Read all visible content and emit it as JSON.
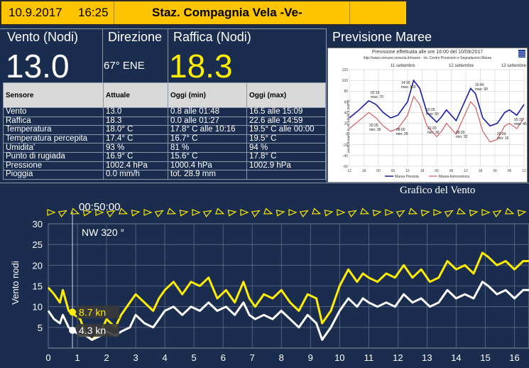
{
  "header": {
    "date": "10.9.2017",
    "time": "16:25",
    "station": "Staz. Compagnia Vela -Ve-"
  },
  "columns": {
    "vento": "Vento (Nodi)",
    "direzione": "Direzione",
    "raffica": "Raffica (Nodi)",
    "previsione": "Previsione Maree"
  },
  "current": {
    "vento": "13.0",
    "direzione": "67° ENE",
    "raffica": "18.3"
  },
  "table": {
    "headers": [
      "Sensore",
      "Attuale",
      "Oggi (min)",
      "Oggi (max)"
    ],
    "rows": [
      [
        "Vento",
        "13.0",
        "0.8 alle   01:48",
        "16.5 alle   15:09"
      ],
      [
        "Raffica",
        "18.3",
        "0.0 alle   01:27",
        "22.6 alle   14:59"
      ],
      [
        "Temperatura",
        "18.0° C",
        "17.8° C   alle   10:16",
        "19.5° C   alle   00:00"
      ],
      [
        "Temperatura percepita",
        "17.4° C",
        "16.7° C",
        "19.5° C"
      ],
      [
        "Umidita'",
        "93 %",
        "81 %",
        "94 %"
      ],
      [
        "Punto di rugiada",
        "16.9° C",
        "15.6° C",
        "17.8° C"
      ],
      [
        "Pressione",
        "1002.4 hPa",
        "1000.4 hPa",
        "1002.9 hPa"
      ],
      [
        "Pioggia",
        "0.0 mm/h",
        "tot. 28.9 mm",
        ""
      ]
    ]
  },
  "tide": {
    "title": "Previsione effettuata alle ore 16:00 del 10/09/2017",
    "subtitle": "http://www.comune.venezia.it/maree - Ist. Centro Previsioni e Segnalazioni Maree",
    "days": [
      "11 settembre",
      "12 settembre",
      "13 settembre"
    ],
    "y_ticks": [
      "120",
      "100",
      "80",
      "60",
      "40",
      "20",
      "0",
      "-20",
      "-40",
      "-60"
    ],
    "x_ticks": [
      "12",
      "18",
      "00",
      "06",
      "12",
      "18",
      "00",
      "06",
      "12",
      "18",
      "00",
      "06",
      "12"
    ],
    "ylabel": "Livelli di marea in cm (riferiti a ZMPS)",
    "legend": [
      "Marea Prevista",
      "Marea Astronomica"
    ],
    "annotations": [
      {
        "t": "02:15",
        "v": "max: 70"
      },
      {
        "t": "14:30",
        "v": "max: 100"
      },
      {
        "t": "15:40",
        "v": "max: 90"
      },
      {
        "t": "02:25",
        "v": "max: 50"
      },
      {
        "t": "05:15",
        "v": "max: 45"
      },
      {
        "t": "20:25",
        "v": "min: 35"
      },
      {
        "t": "08:00",
        "v": "min: 25"
      },
      {
        "t": "21:20",
        "v": "min: 30"
      },
      {
        "t": "08:20",
        "v": "min: 20"
      },
      {
        "t": "20:50",
        "v": "min: 15"
      }
    ],
    "colors": {
      "prevista": "#1a1aa8",
      "astronomica": "#d04040"
    }
  },
  "chart_data": {
    "type": "line",
    "title": "Grafico del Vento",
    "ylabel": "Vento nodi",
    "ylim": [
      0,
      30
    ],
    "xlim": [
      0,
      16.5
    ],
    "y_ticks": [
      5,
      10,
      15,
      20,
      25,
      30
    ],
    "x_ticks": [
      0,
      1,
      2,
      3,
      4,
      5,
      6,
      7,
      8,
      9,
      10,
      11,
      12,
      13,
      14,
      15,
      16
    ],
    "cursor": {
      "time": "00:50:00",
      "direction": "NW 320 °",
      "x": 0.83,
      "gust_label": "8.7 kn",
      "wind_label": "4.3 kn",
      "gust": 8.7,
      "wind": 4.3
    },
    "series": [
      {
        "color": "#ffee00",
        "x": [
          0,
          0.2,
          0.4,
          0.5,
          0.7,
          0.9,
          1.1,
          1.3,
          1.5,
          1.8,
          2.0,
          2.3,
          2.5,
          2.8,
          3.0,
          3.3,
          3.6,
          3.8,
          4.0,
          4.3,
          4.6,
          4.9,
          5.2,
          5.5,
          5.8,
          6.1,
          6.4,
          6.7,
          6.9,
          7.1,
          7.4,
          7.7,
          8.0,
          8.3,
          8.6,
          8.9,
          9.2,
          9.4,
          9.7,
          10.0,
          10.3,
          10.6,
          10.8,
          11.0,
          11.3,
          11.6,
          11.9,
          12.2,
          12.5,
          12.8,
          13.1,
          13.4,
          13.7,
          14.0,
          14.3,
          14.6,
          14.9,
          15.1,
          15.4,
          15.7,
          16.0,
          16.3,
          16.5
        ],
        "values": [
          14.6,
          13,
          11,
          14,
          9,
          8,
          7,
          3,
          2,
          4,
          7,
          5,
          8,
          11,
          13,
          11,
          9,
          12,
          14,
          16,
          13,
          16,
          15,
          17,
          12,
          14,
          11,
          16,
          12,
          10,
          13,
          12,
          14,
          11,
          9,
          13,
          12,
          6,
          9,
          15,
          19,
          16,
          18,
          17,
          16,
          18,
          17,
          20,
          17,
          19,
          16,
          17,
          21,
          19,
          20,
          18,
          23,
          22,
          20,
          21,
          19,
          21,
          21
        ]
      },
      {
        "color": "#ffffff",
        "x": [
          0,
          0.2,
          0.4,
          0.5,
          0.7,
          0.9,
          1.1,
          1.3,
          1.5,
          1.8,
          2.0,
          2.3,
          2.5,
          2.8,
          3.0,
          3.3,
          3.6,
          3.8,
          4.0,
          4.3,
          4.6,
          4.9,
          5.2,
          5.5,
          5.8,
          6.1,
          6.4,
          6.7,
          6.9,
          7.1,
          7.4,
          7.7,
          8.0,
          8.3,
          8.6,
          8.9,
          9.2,
          9.4,
          9.7,
          10.0,
          10.3,
          10.6,
          10.8,
          11.0,
          11.3,
          11.6,
          11.9,
          12.2,
          12.5,
          12.8,
          13.1,
          13.4,
          13.7,
          14.0,
          14.3,
          14.6,
          14.9,
          15.1,
          15.4,
          15.7,
          16.0,
          16.3,
          16.5
        ],
        "values": [
          9,
          7,
          6,
          8,
          5,
          4,
          3,
          3,
          2,
          3,
          4,
          3,
          4,
          5,
          8,
          6,
          5,
          7,
          9,
          10,
          8,
          10,
          9,
          11,
          9,
          10,
          8,
          11,
          8,
          7,
          8,
          7,
          9,
          7,
          5,
          8,
          6,
          2,
          5,
          9,
          12,
          10,
          12,
          11,
          10,
          11,
          10,
          13,
          11,
          12,
          10,
          11,
          14,
          12,
          13,
          12,
          16,
          15,
          13,
          14,
          12,
          14,
          14
        ]
      }
    ]
  }
}
